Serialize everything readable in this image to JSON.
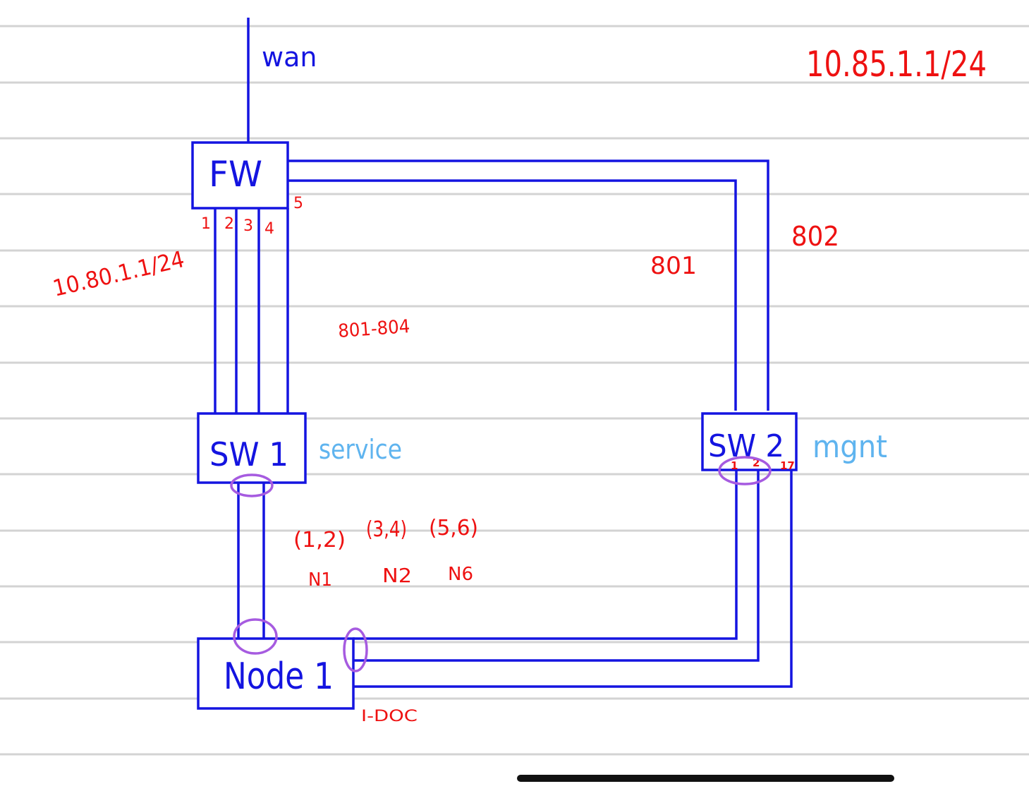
{
  "devices": {
    "fw": "FW",
    "sw1": "SW 1",
    "sw2": "SW 2",
    "node1": "Node 1"
  },
  "labels": {
    "wan": "wan",
    "ip_top_right": "10.85.1.1/24",
    "ip_left": "10.80.1.1/24",
    "vlan_sw2_a": "801",
    "vlan_sw2_b": "802",
    "vlan_range": "801-804",
    "sw1_role": "service",
    "sw2_role": "mgnt",
    "node_pairs": [
      "(1,2)",
      "(3,4)",
      "(5,6)"
    ],
    "node_names": [
      "N1",
      "N2",
      "N6"
    ],
    "node_note": "I-DOC"
  },
  "fw_ports": [
    "1",
    "2",
    "3",
    "4",
    "5"
  ],
  "sw2_ports": [
    "1",
    "2",
    "17"
  ],
  "colors": {
    "wire": "#1414e0",
    "annotation": "#ee1111",
    "role": "#5fb4ef",
    "highlight": "#a65be0",
    "paper_rule": "#d3d3d3"
  }
}
